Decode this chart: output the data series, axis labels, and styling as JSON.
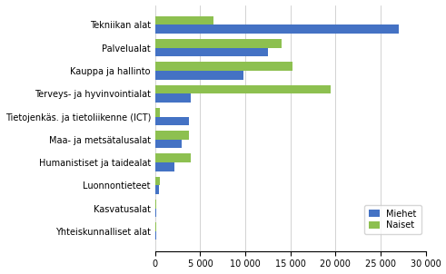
{
  "categories": [
    "Tekniikan alat",
    "Palvelualat",
    "Kauppa ja hallinto",
    "Terveys- ja hyvinvointialat",
    "Tietojenkäs. ja tietoliikenne (ICT)",
    "Maa- ja metsätalusalat",
    "Humanistiset ja taidealat",
    "Luonnontieteet",
    "Kasvatusalat",
    "Yhteiskunnalliset alat"
  ],
  "miehet": [
    27000,
    12500,
    9800,
    4000,
    3700,
    2900,
    2100,
    400,
    150,
    80
  ],
  "naiset": [
    6500,
    14000,
    15200,
    19500,
    500,
    3700,
    4000,
    500,
    150,
    80
  ],
  "color_miehet": "#4472C4",
  "color_naiset": "#8DC050",
  "xlim": [
    0,
    30000
  ],
  "xticks": [
    0,
    5000,
    10000,
    15000,
    20000,
    25000,
    30000
  ],
  "legend_labels": [
    "Miehet",
    "Naiset"
  ],
  "background_color": "#ffffff",
  "grid_color": "#c0c0c0"
}
